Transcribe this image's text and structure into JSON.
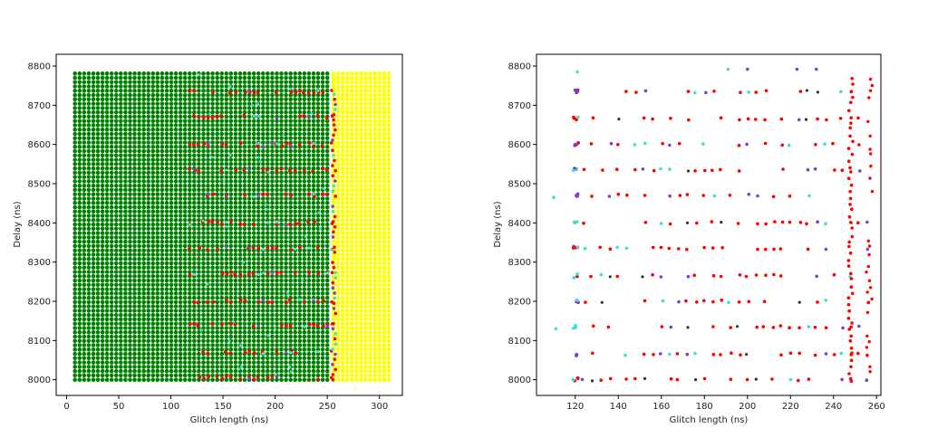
{
  "chart_data": [
    {
      "type": "scatter",
      "title": "",
      "xlabel": "Glitch length (ns)",
      "ylabel": "Delay (ns)",
      "xlim": [
        -10,
        322
      ],
      "ylim": [
        7960,
        8830
      ],
      "xticks": [
        0,
        50,
        100,
        150,
        200,
        250,
        300
      ],
      "yticks": [
        8000,
        8100,
        8200,
        8300,
        8400,
        8500,
        8600,
        8700,
        8800
      ],
      "grid": false,
      "colors": {
        "success": "#008000",
        "no_effect": "#ffff00",
        "fault": "#ff0000",
        "other_a": "#40e0d0",
        "other_b": "#7b3fd4",
        "other_c": "#333333"
      },
      "series": [
        {
          "color": "#008000",
          "x_range": [
            8,
            252
          ],
          "x_step": 4.4,
          "y_range": [
            8000,
            8790
          ],
          "y_step": 11
        },
        {
          "color": "#ffff00",
          "x_range": [
            256,
            312
          ],
          "x_step": 4.4,
          "y_range": [
            8000,
            8790
          ],
          "y_step": 11
        },
        {
          "color": "#ff0000",
          "x_range": [
            118,
            256
          ],
          "y_rows": [
            8005,
            8070,
            8140,
            8200,
            8270,
            8335,
            8400,
            8470,
            8535,
            8600,
            8670,
            8735
          ]
        }
      ]
    },
    {
      "type": "scatter",
      "title": "",
      "xlabel": "Glitch length (ns)",
      "ylabel": "Delay (ns)",
      "xlim": [
        102,
        262
      ],
      "ylim": [
        7960,
        8830
      ],
      "xticks": [
        120,
        140,
        160,
        180,
        200,
        220,
        240,
        260
      ],
      "yticks": [
        8000,
        8100,
        8200,
        8300,
        8400,
        8500,
        8600,
        8700,
        8800
      ],
      "grid": false,
      "colors": {
        "fault": "#ff0000",
        "other_a": "#40e0d0",
        "other_b": "#7b3fd4",
        "other_c": "#333333"
      },
      "series": [
        {
          "color": "#ff0000",
          "x_range": [
            120,
            257
          ],
          "y_rows": [
            8000,
            8065,
            8135,
            8200,
            8265,
            8335,
            8400,
            8470,
            8535,
            8600,
            8665,
            8735
          ]
        },
        {
          "color": "#7b3fd4",
          "x_range": [
            120,
            257
          ],
          "y_rows": [
            8000,
            8065,
            8135,
            8200,
            8265,
            8335,
            8400,
            8470,
            8535,
            8600,
            8665,
            8735
          ]
        },
        {
          "color": "#40e0d0",
          "x_range": [
            110,
            257
          ],
          "y_rows": [
            8000,
            8065,
            8135,
            8200,
            8265,
            8335,
            8400,
            8470,
            8535,
            8600,
            8665,
            8735
          ]
        }
      ]
    }
  ]
}
